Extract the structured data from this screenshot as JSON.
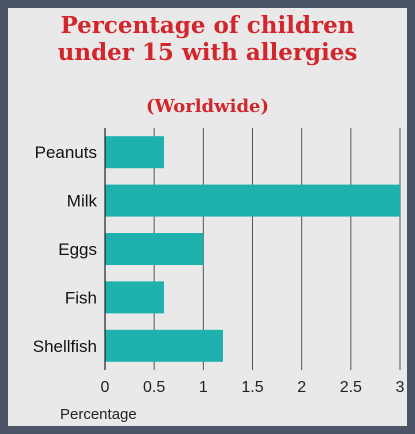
{
  "chart_data": {
    "type": "bar",
    "orientation": "horizontal",
    "title_lines": [
      "Percentage of children",
      "under 15 with allergies"
    ],
    "subtitle": "(Worldwide)",
    "categories": [
      "Peanuts",
      "Milk",
      "Eggs",
      "Fish",
      "Shellfish"
    ],
    "values": [
      0.6,
      3.0,
      1.0,
      0.6,
      1.2
    ],
    "xlabel": "Percentage",
    "ylabel": "",
    "xlim": [
      0,
      3
    ],
    "xticks": [
      0,
      0.5,
      1,
      1.5,
      2,
      2.5,
      3
    ],
    "xtick_labels": [
      "0",
      "0.5",
      "1",
      "1.5",
      "2",
      "2.5",
      "3"
    ],
    "grid": "vertical",
    "bar_color": "#1fb1ad",
    "title_color": "#d1262b"
  }
}
